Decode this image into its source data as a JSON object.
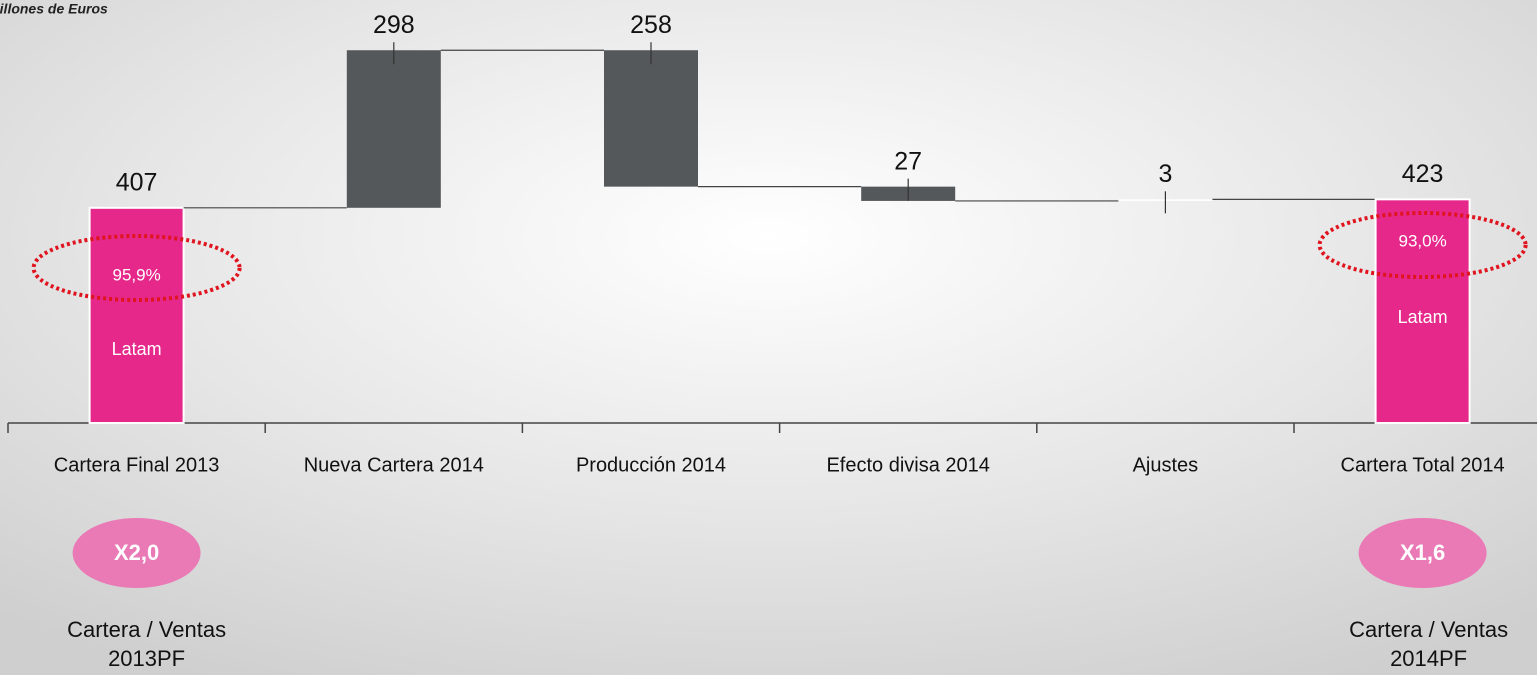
{
  "chart_data": {
    "type": "waterfall",
    "subtitle": "Millones de Euros",
    "categories": [
      "Cartera Final 2013",
      "Nueva Cartera 2014",
      "Producción 2014",
      "Efecto divisa 2014",
      "Ajustes",
      "Cartera Total 2014"
    ],
    "values": [
      407,
      298,
      -258,
      -27,
      3,
      423
    ],
    "value_labels": [
      "407",
      "298",
      "258",
      "27",
      "3",
      "423"
    ],
    "is_total": [
      true,
      false,
      false,
      false,
      false,
      true
    ],
    "colors": [
      "#e5288a",
      "#54585a",
      "#54585a",
      "#54585a",
      "#ffffff",
      "#e5288a"
    ],
    "ylim": [
      0,
      800
    ],
    "shares": [
      {
        "value": "95,9%",
        "region": "Latam"
      },
      {
        "value": "93,0%",
        "region": "Latam"
      }
    ],
    "ratios": [
      {
        "multiple": "X2,0",
        "label": "Cartera / Ventas",
        "period": "2013PF"
      },
      {
        "multiple": "X1,6",
        "label": "Cartera / Ventas",
        "period": "2014PF"
      }
    ]
  }
}
